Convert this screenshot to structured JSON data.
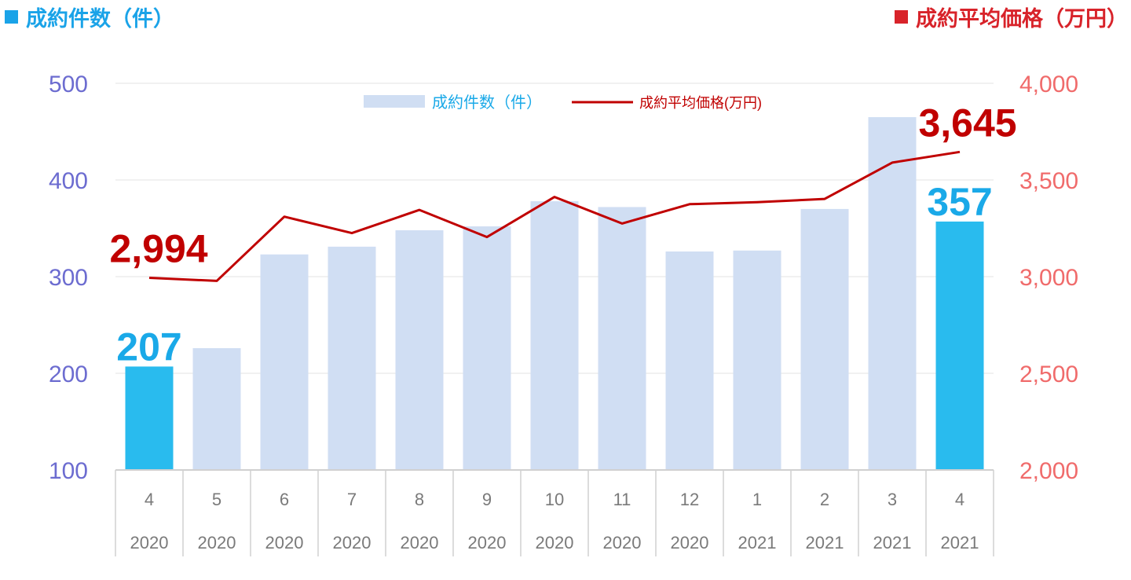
{
  "titles": {
    "left": "成約件数（件）",
    "right": "成約平均価格（万円）"
  },
  "colors": {
    "bar_highlight": "#29bbee",
    "bar_normal": "#d0def3",
    "line": "#c00000",
    "left_axis_text": "#6c6cd0",
    "right_axis_text": "#f06b6b",
    "left_title": "#1aa3e8",
    "right_title": "#d8232a",
    "callout_count": "#1aa9e8",
    "callout_price": "#c00000"
  },
  "chart_data": {
    "type": "bar",
    "categories": [
      {
        "month": "4",
        "year": "2020"
      },
      {
        "month": "5",
        "year": "2020"
      },
      {
        "month": "6",
        "year": "2020"
      },
      {
        "month": "7",
        "year": "2020"
      },
      {
        "month": "8",
        "year": "2020"
      },
      {
        "month": "9",
        "year": "2020"
      },
      {
        "month": "10",
        "year": "2020"
      },
      {
        "month": "11",
        "year": "2020"
      },
      {
        "month": "12",
        "year": "2020"
      },
      {
        "month": "1",
        "year": "2021"
      },
      {
        "month": "2",
        "year": "2021"
      },
      {
        "month": "3",
        "year": "2021"
      },
      {
        "month": "4",
        "year": "2021"
      }
    ],
    "series": [
      {
        "name": "成約件数（件）",
        "type": "bar",
        "axis": "left",
        "values": [
          207,
          226,
          323,
          331,
          348,
          352,
          378,
          372,
          326,
          327,
          370,
          465,
          357
        ],
        "highlight": [
          0,
          12
        ]
      },
      {
        "name": "成約平均価格(万円)",
        "type": "line",
        "axis": "right",
        "values": [
          2994,
          2978,
          3310,
          3225,
          3345,
          3205,
          3412,
          3275,
          3375,
          3385,
          3402,
          3590,
          3645
        ]
      }
    ],
    "left_axis": {
      "min": 100,
      "max": 500,
      "ticks": [
        "500",
        "400",
        "300",
        "200",
        "100"
      ]
    },
    "right_axis": {
      "min": 2000,
      "max": 4000,
      "ticks": [
        "4,000",
        "3,500",
        "3,000",
        "2,500",
        "2,000"
      ]
    },
    "grid": true,
    "legend_position": "top-center",
    "annotations": {
      "count_start": "207",
      "count_end": "357",
      "price_start": "2,994",
      "price_end": "3,645"
    }
  }
}
